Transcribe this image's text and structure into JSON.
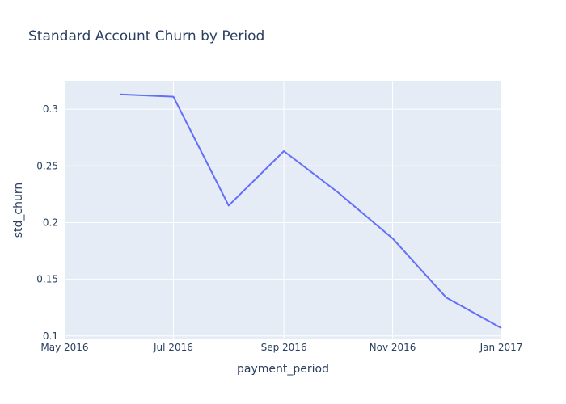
{
  "chart_data": {
    "type": "line",
    "title": "Standard Account Churn by Period",
    "xlabel": "payment_period",
    "ylabel": "std_churn",
    "x_ticks": [
      "May 2016",
      "Jul 2016",
      "Sep 2016",
      "Nov 2016",
      "Jan 2017"
    ],
    "x_tick_dates": [
      "2016-05-01",
      "2016-07-01",
      "2016-09-01",
      "2016-11-01",
      "2017-01-01"
    ],
    "xlim": [
      "2016-05-01",
      "2017-01-01"
    ],
    "y_ticks": [
      0.1,
      0.15,
      0.2,
      0.25,
      0.3
    ],
    "y_tick_labels": [
      "0.1",
      "0.15",
      "0.2",
      "0.25",
      "0.3"
    ],
    "ylim": [
      0.097,
      0.325
    ],
    "grid": true,
    "series": [
      {
        "color": "#636efa",
        "x": [
          "2016-06-01",
          "2016-07-01",
          "2016-08-01",
          "2016-09-01",
          "2016-10-01",
          "2016-11-01",
          "2016-12-01",
          "2017-01-01"
        ],
        "y": [
          0.313,
          0.311,
          0.215,
          0.263,
          0.227,
          0.186,
          0.134,
          0.107
        ]
      }
    ],
    "colors": {
      "plot_bg": "#e5ecf6",
      "grid": "#ffffff",
      "text": "#2a3f5f"
    }
  }
}
